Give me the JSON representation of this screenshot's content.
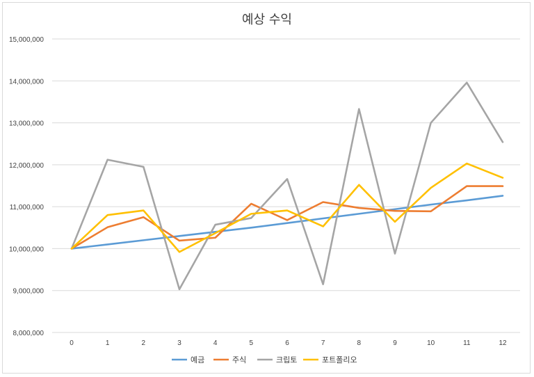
{
  "chart_data": {
    "type": "line",
    "title": "예상 수익",
    "xlabel": "",
    "ylabel": "",
    "x": [
      0,
      1,
      2,
      3,
      4,
      5,
      6,
      7,
      8,
      9,
      10,
      11,
      12
    ],
    "ylim": [
      8000000,
      15000000
    ],
    "yticks": [
      "8,000,000",
      "9,000,000",
      "10,000,000",
      "11,000,000",
      "12,000,000",
      "13,000,000",
      "14,000,000",
      "15,000,000"
    ],
    "grid": true,
    "legend_position": "bottom",
    "series": [
      {
        "name": "예금",
        "color": "#5b9bd5",
        "values": [
          10000000,
          10100000,
          10200000,
          10300000,
          10400000,
          10500000,
          10610000,
          10720000,
          10830000,
          10940000,
          11050000,
          11150000,
          11260000
        ]
      },
      {
        "name": "주식",
        "color": "#ed7d31",
        "values": [
          10000000,
          10510000,
          10750000,
          10190000,
          10260000,
          11070000,
          10680000,
          11110000,
          10970000,
          10900000,
          10890000,
          11490000,
          11490000
        ]
      },
      {
        "name": "크립토",
        "color": "#a5a5a5",
        "values": [
          10000000,
          12120000,
          11950000,
          9030000,
          10570000,
          10730000,
          11660000,
          9150000,
          13330000,
          9880000,
          13000000,
          13960000,
          12540000
        ]
      },
      {
        "name": "포트폴리오",
        "color": "#ffc000",
        "values": [
          10000000,
          10800000,
          10910000,
          9920000,
          10370000,
          10830000,
          10910000,
          10530000,
          11520000,
          10640000,
          11450000,
          12030000,
          11690000
        ]
      }
    ]
  }
}
